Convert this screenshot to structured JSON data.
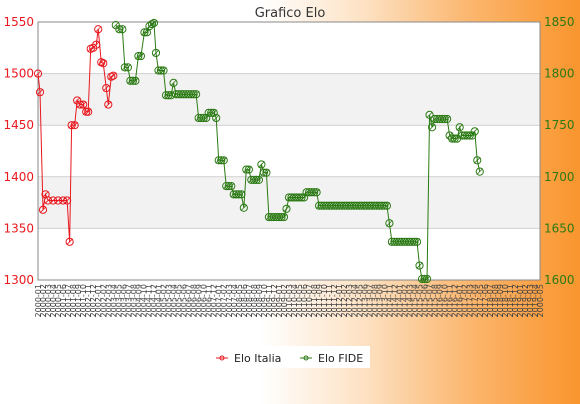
{
  "chart_data": {
    "type": "line",
    "title": "Grafico Elo",
    "colors": {
      "italia": "#e8191f",
      "fide": "#2b7a14",
      "grid": "#cfcfcf",
      "band": "#f2f2f2",
      "axis": "#888888"
    },
    "y_left": {
      "ticks": [
        1300,
        1350,
        1400,
        1450,
        1500,
        1550
      ],
      "ylim": [
        1300,
        1550
      ]
    },
    "y_right": {
      "ticks": [
        1600,
        1650,
        1700,
        1750,
        1800,
        1850
      ],
      "ylim": [
        1600,
        1850
      ]
    },
    "x_count": 100,
    "x_tick_labels": [
      "2000",
      "2001",
      "2002",
      "2003",
      "2004",
      "2005",
      "2006",
      "2007",
      "2008",
      "2009",
      "2010",
      "2011",
      "2012",
      "2013",
      "2014",
      "2015",
      "2016",
      "2017",
      "2018",
      "2019"
    ],
    "legend": [
      {
        "label": "Elo Italia",
        "series": "italia"
      },
      {
        "label": "Elo FIDE",
        "series": "fide"
      }
    ],
    "series": [
      {
        "key": "italia",
        "name": "Elo Italia",
        "axis": "left",
        "points": [
          [
            0,
            1500
          ],
          [
            0.4,
            1482
          ],
          [
            1.0,
            1368
          ],
          [
            1.5,
            1383
          ],
          [
            2.0,
            1377
          ],
          [
            3.0,
            1377
          ],
          [
            4.0,
            1377
          ],
          [
            5.0,
            1377
          ],
          [
            5.8,
            1377
          ],
          [
            6.3,
            1337
          ],
          [
            6.7,
            1450
          ],
          [
            7.3,
            1450
          ],
          [
            7.8,
            1474
          ],
          [
            8.4,
            1470
          ],
          [
            9.0,
            1470
          ],
          [
            9.6,
            1463
          ],
          [
            10.0,
            1463
          ],
          [
            10.5,
            1524
          ],
          [
            11.0,
            1525
          ],
          [
            11.6,
            1528
          ],
          [
            12.0,
            1543
          ],
          [
            12.6,
            1511
          ],
          [
            13.0,
            1510
          ],
          [
            13.6,
            1486
          ],
          [
            14.0,
            1470
          ],
          [
            14.6,
            1497
          ],
          [
            15.0,
            1498
          ]
        ]
      },
      {
        "key": "fide",
        "name": "Elo FIDE",
        "axis": "right",
        "points": [
          [
            15.5,
            1847
          ],
          [
            16.2,
            1843
          ],
          [
            16.8,
            1843
          ],
          [
            17.3,
            1806
          ],
          [
            17.9,
            1806
          ],
          [
            18.4,
            1793
          ],
          [
            18.9,
            1793
          ],
          [
            19.4,
            1793
          ],
          [
            20.0,
            1817
          ],
          [
            20.5,
            1817
          ],
          [
            21.2,
            1840
          ],
          [
            21.7,
            1840
          ],
          [
            22.2,
            1846
          ],
          [
            22.7,
            1848
          ],
          [
            23.1,
            1849
          ],
          [
            23.5,
            1820
          ],
          [
            24.0,
            1803
          ],
          [
            24.5,
            1803
          ],
          [
            25.0,
            1803
          ],
          [
            25.5,
            1779
          ],
          [
            26.0,
            1779
          ],
          [
            26.5,
            1779
          ],
          [
            27.0,
            1791
          ],
          [
            27.5,
            1780
          ],
          [
            28.0,
            1780
          ],
          [
            28.5,
            1780
          ],
          [
            29.0,
            1780
          ],
          [
            29.5,
            1780
          ],
          [
            30.0,
            1780
          ],
          [
            30.5,
            1780
          ],
          [
            31.0,
            1780
          ],
          [
            31.5,
            1780
          ],
          [
            32.0,
            1757
          ],
          [
            32.5,
            1757
          ],
          [
            33.0,
            1757
          ],
          [
            33.5,
            1757
          ],
          [
            34.0,
            1762
          ],
          [
            34.5,
            1762
          ],
          [
            35.0,
            1762
          ],
          [
            35.5,
            1757
          ],
          [
            36.0,
            1716
          ],
          [
            36.5,
            1716
          ],
          [
            37.0,
            1716
          ],
          [
            37.5,
            1691
          ],
          [
            38.0,
            1691
          ],
          [
            38.5,
            1691
          ],
          [
            39.0,
            1683
          ],
          [
            39.5,
            1683
          ],
          [
            40.0,
            1683
          ],
          [
            40.5,
            1683
          ],
          [
            41.0,
            1670
          ],
          [
            41.5,
            1707
          ],
          [
            42.0,
            1707
          ],
          [
            42.5,
            1697
          ],
          [
            43.0,
            1697
          ],
          [
            43.5,
            1697
          ],
          [
            44.0,
            1697
          ],
          [
            44.5,
            1712
          ],
          [
            45.0,
            1704
          ],
          [
            45.5,
            1704
          ],
          [
            46.0,
            1661
          ],
          [
            46.5,
            1661
          ],
          [
            47.0,
            1661
          ],
          [
            47.5,
            1661
          ],
          [
            48.0,
            1661
          ],
          [
            48.5,
            1661
          ],
          [
            49.0,
            1661
          ],
          [
            49.5,
            1669
          ],
          [
            50.0,
            1680
          ],
          [
            50.5,
            1680
          ],
          [
            51.0,
            1680
          ],
          [
            51.5,
            1680
          ],
          [
            52.0,
            1680
          ],
          [
            52.5,
            1680
          ],
          [
            53.0,
            1680
          ],
          [
            53.5,
            1685
          ],
          [
            54.0,
            1685
          ],
          [
            54.5,
            1685
          ],
          [
            55.0,
            1685
          ],
          [
            55.5,
            1685
          ],
          [
            56.0,
            1672
          ],
          [
            56.5,
            1672
          ],
          [
            57.0,
            1672
          ],
          [
            57.5,
            1672
          ],
          [
            58.0,
            1672
          ],
          [
            58.5,
            1672
          ],
          [
            59.0,
            1672
          ],
          [
            59.5,
            1672
          ],
          [
            60.0,
            1672
          ],
          [
            60.5,
            1672
          ],
          [
            61.0,
            1672
          ],
          [
            61.5,
            1672
          ],
          [
            62.0,
            1672
          ],
          [
            62.5,
            1672
          ],
          [
            63.0,
            1672
          ],
          [
            63.5,
            1672
          ],
          [
            64.0,
            1672
          ],
          [
            64.5,
            1672
          ],
          [
            65.0,
            1672
          ],
          [
            65.5,
            1672
          ],
          [
            66.0,
            1672
          ],
          [
            66.5,
            1672
          ],
          [
            67.0,
            1672
          ],
          [
            67.5,
            1672
          ],
          [
            68.0,
            1672
          ],
          [
            68.5,
            1672
          ],
          [
            69.0,
            1672
          ],
          [
            69.5,
            1672
          ],
          [
            70.0,
            1655
          ],
          [
            70.5,
            1637
          ],
          [
            71.0,
            1637
          ],
          [
            71.5,
            1637
          ],
          [
            72.0,
            1637
          ],
          [
            72.5,
            1637
          ],
          [
            73.0,
            1637
          ],
          [
            73.5,
            1637
          ],
          [
            74.0,
            1637
          ],
          [
            74.5,
            1637
          ],
          [
            75.0,
            1637
          ],
          [
            75.5,
            1637
          ],
          [
            76.0,
            1614
          ],
          [
            76.5,
            1601
          ],
          [
            77.0,
            1601
          ],
          [
            77.5,
            1601
          ],
          [
            78.0,
            1760
          ],
          [
            78.5,
            1748
          ],
          [
            79.0,
            1756
          ],
          [
            79.5,
            1756
          ],
          [
            80.0,
            1756
          ],
          [
            80.5,
            1756
          ],
          [
            81.0,
            1756
          ],
          [
            81.5,
            1756
          ],
          [
            82.0,
            1740
          ],
          [
            82.5,
            1737
          ],
          [
            83.0,
            1737
          ],
          [
            83.5,
            1737
          ],
          [
            84.0,
            1748
          ],
          [
            84.5,
            1740
          ],
          [
            85.0,
            1740
          ],
          [
            85.5,
            1740
          ],
          [
            86.0,
            1740
          ],
          [
            86.5,
            1740
          ],
          [
            87.0,
            1744
          ],
          [
            87.5,
            1716
          ],
          [
            88.0,
            1705
          ]
        ]
      }
    ]
  }
}
